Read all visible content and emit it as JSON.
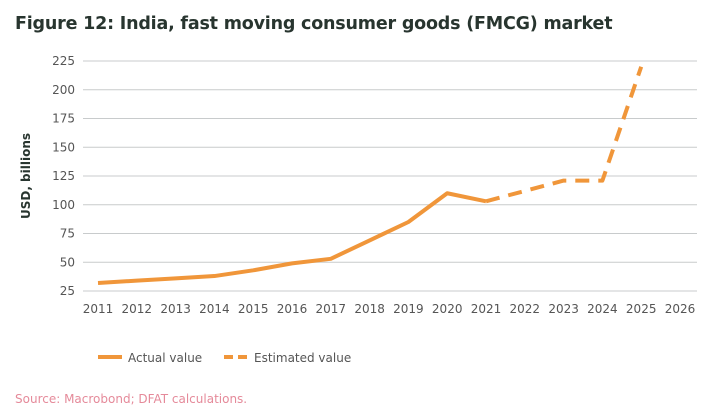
{
  "chart_data": {
    "type": "line",
    "title": "Figure 12: India, fast moving consumer goods (FMCG) market",
    "xlabel": "",
    "ylabel": "USD, billions",
    "ylim": [
      25,
      225
    ],
    "yticks": [
      25,
      50,
      75,
      100,
      125,
      150,
      175,
      200,
      225
    ],
    "categories": [
      "2011",
      "2012",
      "2013",
      "2014",
      "2015",
      "2016",
      "2017",
      "2018",
      "2019",
      "2020",
      "2021",
      "2022",
      "2023",
      "2024",
      "2025",
      "2026"
    ],
    "grid": true,
    "legend_position": "bottom-left",
    "series": [
      {
        "name": "Actual value",
        "style": "solid",
        "color": "#F0963A",
        "values": [
          32,
          34,
          36,
          38,
          43,
          49,
          53,
          69,
          85,
          110,
          103,
          null,
          null,
          null,
          null,
          null
        ]
      },
      {
        "name": "Estimated value",
        "style": "dashed",
        "color": "#F0963A",
        "values": [
          null,
          null,
          null,
          null,
          null,
          null,
          null,
          null,
          null,
          null,
          103,
          112,
          121,
          121,
          220,
          null
        ]
      }
    ],
    "source": "Source: Macrobond; DFAT calculations."
  }
}
